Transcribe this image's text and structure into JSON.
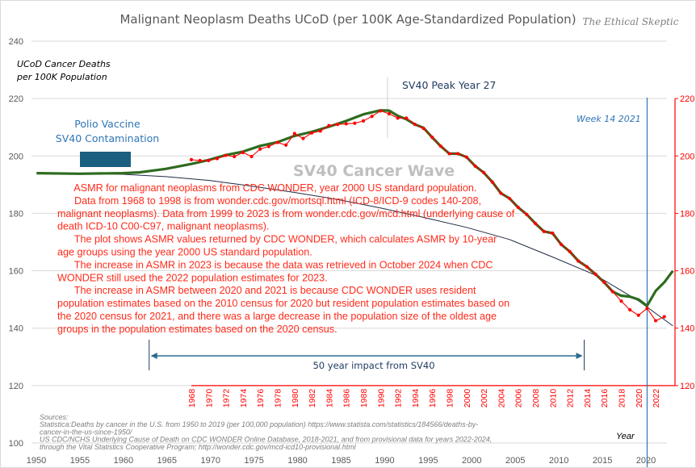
{
  "chart_data": {
    "type": "line",
    "title": "Malignant Neoplasm Deaths UCoD (per 100K Age-Standardized Population)",
    "watermark": "The Ethical Skeptic",
    "ylabel": "UCoD Cancer Deaths per 100K Population",
    "ylabel_lines": [
      "UCoD Cancer Deaths",
      "per 100K Population"
    ],
    "xlabel": "Year",
    "ylim": [
      100,
      240
    ],
    "yticks": [
      100,
      120,
      140,
      160,
      180,
      200,
      220,
      240
    ],
    "xticks": [
      1950,
      1955,
      1960,
      1965,
      1970,
      1975,
      1980,
      1985,
      1990,
      1995,
      2000,
      2005,
      2010,
      2015,
      2020
    ],
    "secondary_ylim": [
      120,
      220
    ],
    "secondary_yticks": [
      120,
      140,
      160,
      180,
      200,
      220
    ],
    "secondary_xticks": [
      1968,
      1970,
      1972,
      1974,
      1976,
      1978,
      1980,
      1982,
      1984,
      1986,
      1988,
      1990,
      1992,
      1994,
      1996,
      1998,
      2000,
      2002,
      2004,
      2006,
      2008,
      2010,
      2012,
      2014,
      2016,
      2018,
      2020,
      2022
    ],
    "grid": true,
    "colors": {
      "main": "#2e6b1f",
      "asmr": "#ff0000",
      "trend": "#1f2a44",
      "marker": "#2e75b6",
      "wave": "#bfbfbf",
      "box": "#1a5e80"
    },
    "series": [
      {
        "key": "main",
        "x": [
          1950,
          1955,
          1960,
          1962,
          1965,
          1968,
          1970,
          1972,
          1974,
          1976,
          1978,
          1980,
          1982,
          1984,
          1986,
          1988,
          1990,
          1991,
          1992,
          1993,
          1994,
          1995,
          1996,
          1997,
          1998,
          1999,
          2000,
          2001,
          2002,
          2003,
          2004,
          2005,
          2006,
          2007,
          2008,
          2009,
          2010,
          2011,
          2012,
          2013,
          2014,
          2015,
          2016,
          2017,
          2018,
          2019,
          2020,
          2021,
          2022,
          2023,
          2024
        ],
        "y": [
          194,
          193.8,
          194,
          194.3,
          195.5,
          197.2,
          198.6,
          200.3,
          201.5,
          203.5,
          204.8,
          207,
          208.4,
          210.2,
          212.2,
          214.5,
          215.9,
          215.8,
          214,
          212.8,
          211,
          209.8,
          206.5,
          203.4,
          200.8,
          200.8,
          199.6,
          196.5,
          194.2,
          190.9,
          187,
          185.2,
          182.1,
          179.6,
          176.5,
          173.7,
          173.1,
          169.2,
          166.7,
          163.4,
          161.4,
          158.8,
          156,
          152.7,
          151.3,
          151,
          150,
          147.8,
          153,
          156,
          160
        ]
      },
      {
        "key": "asmr",
        "axis": "secondary",
        "x": [
          1968,
          1969,
          1970,
          1971,
          1972,
          1973,
          1974,
          1975,
          1976,
          1977,
          1978,
          1979,
          1980,
          1981,
          1982,
          1983,
          1984,
          1985,
          1986,
          1987,
          1988,
          1989,
          1990,
          1991,
          1992,
          1993,
          1994,
          1995,
          1996,
          1997,
          1998,
          1999,
          2000,
          2001,
          2002,
          2003,
          2004,
          2005,
          2006,
          2007,
          2008,
          2009,
          2010,
          2011,
          2012,
          2013,
          2014,
          2015,
          2016,
          2017,
          2018,
          2019,
          2020,
          2021,
          2022,
          2023
        ],
        "y": [
          198.7,
          198.4,
          198.4,
          199.1,
          200.2,
          199.8,
          201.2,
          199.8,
          202.4,
          203.3,
          204.7,
          203.8,
          207.8,
          206.1,
          208,
          208.7,
          210.6,
          211,
          211.2,
          211.4,
          212.2,
          213.8,
          215.7,
          214.7,
          213.2,
          213.2,
          211,
          209.6,
          206.5,
          203.4,
          200.8,
          200.8,
          199.6,
          196.5,
          194.2,
          190.9,
          187,
          185.2,
          182.1,
          179.6,
          176.5,
          173.7,
          173.1,
          169.2,
          166.7,
          163.4,
          161.4,
          158.8,
          156,
          152.7,
          149.4,
          146.4,
          144.5,
          146.9,
          142.6,
          144
        ]
      },
      {
        "key": "trend",
        "x": [
          1950,
          1955,
          1960,
          1965,
          1970,
          1975,
          1980,
          1985,
          1990,
          1995,
          2000,
          2005,
          2010,
          2015,
          2020,
          2024
        ],
        "y": [
          194,
          193.9,
          193.6,
          192.8,
          191.5,
          189.5,
          187.3,
          184.8,
          181.9,
          178.6,
          175.1,
          170.9,
          164.8,
          158.5,
          149.5,
          140.8
        ]
      }
    ],
    "annotations": {
      "polio": [
        "Polio Vaccine",
        "SV40 Contamination"
      ],
      "peak": "SV40  Peak Year 27",
      "peak_year": 1991,
      "week": "Week 14 2021",
      "week_year": 2021,
      "wave": "SV40 Cancer Wave",
      "impact": "50 year impact from SV40",
      "impact_range": [
        1963,
        2015
      ],
      "notes": [
        "      ASMR for malignant neoplasms from CDC WONDER, year 2000 US standard population.",
        "      Data from 1968 to 1998 is from wonder.cdc.gov/mortsql.html (ICD-8/ICD-9 codes 140-208,",
        "malignant neoplasms). Data from 1999 to 2023 is from wonder.cdc.gov/mcd.html (underlying cause of",
        "death ICD-10 C00-C97, malignant neoplasms).",
        "      The plot shows ASMR values returned by CDC WONDER, which calculates ASMR by 10-year",
        "age groups using the year 2000 US standard population.",
        "      The increase in ASMR in 2023 is because the data was retrieved in October 2024 when CDC",
        "WONDER still used the 2022 population estimates for 2023.",
        "      The increase in ASMR between 2020 and 2021 is because CDC WONDER uses resident",
        "population estimates based on the 2010 census for 2020 but resident population estimates based on",
        "the 2020 census for 2021, and there was a large decrease in the population size of the oldest age",
        "groups in the population estimates based on the 2020 census."
      ],
      "sources": [
        "Sources:",
        "Statistica:Deaths by cancer in the U.S. from 1950 to 2019 (per 100,000 population) https://www.statista.com/statistics/184566/deaths-by-",
        "cancer-in-the-us-since-1950/",
        "US CDC/NCHS Underlying Cause of Death on CDC WONDER Online Database, 2018-2021, and from provisional data for years 2022-2024,",
        "through the Vital Statistics Cooperative Program; http://wonder.cdc.gov/mcd-icd10-provisional.html"
      ]
    }
  }
}
